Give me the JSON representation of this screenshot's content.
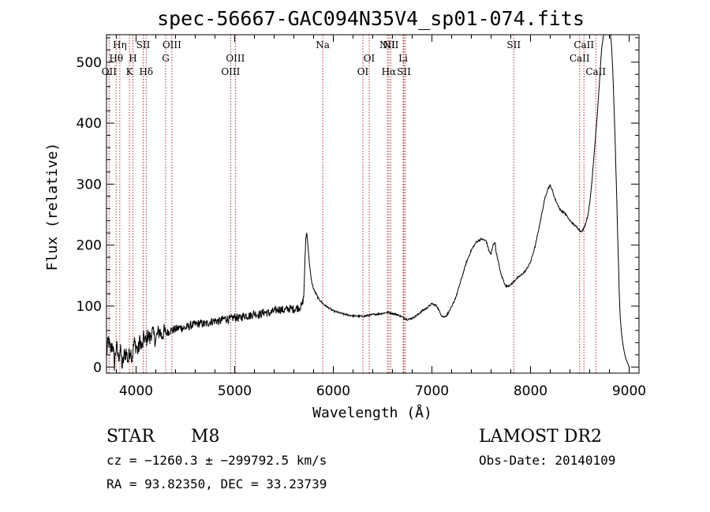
{
  "chart_data": {
    "type": "line",
    "title": "spec-56667-GAC094N35V4_sp01-074.fits",
    "xlabel": "Wavelength (Å)",
    "ylabel": "Flux (relative)",
    "xlim": [
      3700,
      9100
    ],
    "ylim": [
      -10,
      545
    ],
    "xticks": [
      4000,
      5000,
      6000,
      7000,
      8000,
      9000
    ],
    "yticks": [
      0,
      100,
      200,
      300,
      400,
      500
    ],
    "line_color": "#000000",
    "marker_color": "#b03030",
    "series": [
      {
        "x": [
          3700,
          3720,
          3740,
          3760,
          3780,
          3800,
          3820,
          3840,
          3860,
          3880,
          3900,
          3920,
          3940,
          3960,
          3980,
          4000,
          4020,
          4040,
          4060,
          4080,
          4100,
          4120,
          4140,
          4160,
          4180,
          4200,
          4220,
          4240,
          4260,
          4280,
          4300,
          4350,
          4400,
          4450,
          4500,
          4550,
          4600,
          4650,
          4700,
          4750,
          4800,
          4850,
          4900,
          4950,
          5000,
          5050,
          5100,
          5150,
          5200,
          5250,
          5300,
          5350,
          5400,
          5450,
          5500,
          5550,
          5600,
          5650,
          5680,
          5700,
          5710,
          5720,
          5730,
          5740,
          5750,
          5760,
          5780,
          5800,
          5850,
          5900,
          6000,
          6100,
          6200,
          6300,
          6400,
          6450,
          6500,
          6550,
          6600,
          6650,
          6700,
          6750,
          6800,
          6850,
          6900,
          6950,
          7000,
          7050,
          7080,
          7100,
          7120,
          7150,
          7200,
          7250,
          7300,
          7350,
          7400,
          7450,
          7500,
          7550,
          7580,
          7600,
          7620,
          7640,
          7650,
          7700,
          7750,
          7800,
          7850,
          7900,
          7950,
          8000,
          8050,
          8100,
          8150,
          8180,
          8200,
          8220,
          8250,
          8300,
          8350,
          8400,
          8450,
          8480,
          8500,
          8520,
          8540,
          8560,
          8580,
          8600,
          8620,
          8640,
          8660,
          8680,
          8700,
          8720,
          8740,
          8760,
          8780,
          8800,
          8810,
          8820,
          8830,
          8840,
          8850,
          8860,
          8870,
          8880,
          8890,
          8900,
          8910,
          8920,
          8930,
          8940,
          8950,
          8960,
          8970,
          8980,
          8990,
          9000
        ],
        "y": [
          20,
          45,
          25,
          40,
          5,
          35,
          15,
          30,
          0,
          20,
          25,
          10,
          30,
          15,
          40,
          35,
          25,
          45,
          30,
          50,
          40,
          55,
          45,
          60,
          50,
          45,
          55,
          60,
          50,
          58,
          55,
          60,
          62,
          65,
          64,
          68,
          70,
          72,
          70,
          74,
          76,
          75,
          80,
          78,
          82,
          80,
          85,
          84,
          88,
          86,
          90,
          88,
          92,
          95,
          93,
          96,
          95,
          98,
          100,
          115,
          160,
          210,
          220,
          205,
          185,
          165,
          140,
          128,
          112,
          103,
          92,
          87,
          84,
          83,
          86,
          87,
          88,
          90,
          88,
          86,
          82,
          78,
          80,
          85,
          92,
          97,
          104,
          100,
          90,
          84,
          82,
          85,
          98,
          118,
          145,
          172,
          192,
          205,
          210,
          207,
          190,
          185,
          200,
          205,
          190,
          152,
          132,
          135,
          144,
          150,
          158,
          172,
          200,
          240,
          280,
          294,
          298,
          290,
          275,
          258,
          252,
          240,
          232,
          228,
          224,
          222,
          228,
          236,
          248,
          268,
          300,
          340,
          380,
          420,
          470,
          520,
          545,
          545,
          545,
          545,
          545,
          530,
          500,
          460,
          410,
          360,
          300,
          240,
          180,
          120,
          80,
          60,
          45,
          35,
          25,
          18,
          12,
          8,
          5,
          0
        ]
      }
    ],
    "lines": [
      {
        "wl": 3727,
        "label": "OII",
        "row": 3
      },
      {
        "wl": 3798,
        "label": "Hθ",
        "row": 2
      },
      {
        "wl": 3835,
        "label": "Hη",
        "row": 1
      },
      {
        "wl": 3933,
        "label": "K",
        "row": 3
      },
      {
        "wl": 3968,
        "label": "H",
        "row": 2
      },
      {
        "wl": 4072,
        "label": "SII",
        "row": 1
      },
      {
        "wl": 4102,
        "label": "Hδ",
        "row": 3
      },
      {
        "wl": 4300,
        "label": "G",
        "row": 2
      },
      {
        "wl": 4363,
        "label": "OIII",
        "row": 1
      },
      {
        "wl": 4959,
        "label": "OIII",
        "row": 3
      },
      {
        "wl": 5007,
        "label": "OIII",
        "row": 2
      },
      {
        "wl": 5893,
        "label": "Na",
        "row": 1
      },
      {
        "wl": 6300,
        "label": "OI",
        "row": 3
      },
      {
        "wl": 6364,
        "label": "OI",
        "row": 2
      },
      {
        "wl": 6548,
        "label": "NII",
        "row": 1
      },
      {
        "wl": 6563,
        "label": "Hα",
        "row": 3
      },
      {
        "wl": 6583,
        "label": "NII",
        "row": 1
      },
      {
        "wl": 6708,
        "label": "Li",
        "row": 2
      },
      {
        "wl": 6716,
        "label": "SII",
        "row": 3
      },
      {
        "wl": 6731,
        "label": "",
        "row": 0
      },
      {
        "wl": 7830,
        "label": "SII",
        "row": 1
      },
      {
        "wl": 8498,
        "label": "CaII",
        "row": 2
      },
      {
        "wl": 8542,
        "label": "CaII",
        "row": 1
      },
      {
        "wl": 8662,
        "label": "CaII",
        "row": 3
      }
    ]
  },
  "info": {
    "class_label": "STAR",
    "subclass_label": "M8",
    "survey": "LAMOST DR2",
    "redshift": "cz = −1260.3 ± −299792.5 km/s",
    "obs_date": "Obs-Date: 20140109",
    "coords": "RA =  93.82350, DEC =  33.23739"
  }
}
